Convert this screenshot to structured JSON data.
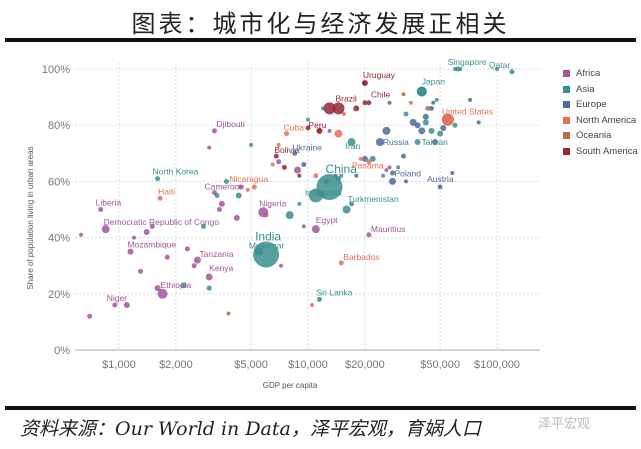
{
  "header": {
    "title": "图表：城市化与经济发展正相关"
  },
  "footer": {
    "source": "资料来源：Our World in Data，泽平宏观，育娲人口",
    "watermark": "泽平宏观"
  },
  "chart_data": {
    "type": "scatter",
    "title": "图表：城市化与经济发展正相关",
    "xlabel": "GDP per capita",
    "ylabel": "Share of population living in urban areas",
    "xscale": "log",
    "xlim": [
      600,
      140000
    ],
    "ylim": [
      0,
      100
    ],
    "x_ticks": [
      "$1,000",
      "$2,000",
      "$5,000",
      "$10,000",
      "$20,000",
      "$50,000",
      "$100,000"
    ],
    "y_ticks": [
      "0%",
      "20%",
      "40%",
      "60%",
      "80%",
      "100%"
    ],
    "grid": true,
    "legend_position": "right",
    "legend": [
      {
        "name": "Africa",
        "color": "#a2559c"
      },
      {
        "name": "Asia",
        "color": "#3a8f8c"
      },
      {
        "name": "Europe",
        "color": "#4c6a9c"
      },
      {
        "name": "North America",
        "color": "#e56e5a"
      },
      {
        "name": "Oceania",
        "color": "#b16f47"
      },
      {
        "name": "South America",
        "color": "#932834"
      }
    ],
    "labeled_points": [
      {
        "country": "Qatar",
        "region": "Asia",
        "gdp": 120000,
        "urban": 99
      },
      {
        "country": "Singapore",
        "region": "Asia",
        "gdp": 62000,
        "urban": 100
      },
      {
        "country": "Japan",
        "region": "Asia",
        "gdp": 40000,
        "urban": 92
      },
      {
        "country": "Uruguay",
        "region": "South America",
        "gdp": 20000,
        "urban": 95
      },
      {
        "country": "United States",
        "region": "North America",
        "gdp": 55000,
        "urban": 82
      },
      {
        "country": "Brazil",
        "region": "South America",
        "gdp": 14500,
        "urban": 86
      },
      {
        "country": "Chile",
        "region": "South America",
        "gdp": 21000,
        "urban": 88
      },
      {
        "country": "Taiwan",
        "region": "Asia",
        "gdp": 45000,
        "urban": 78
      },
      {
        "country": "Cuba",
        "region": "North America",
        "gdp": 7700,
        "urban": 77
      },
      {
        "country": "Peru",
        "region": "South America",
        "gdp": 11500,
        "urban": 78
      },
      {
        "country": "Iran",
        "region": "Asia",
        "gdp": 17000,
        "urban": 74
      },
      {
        "country": "Russia",
        "region": "Europe",
        "gdp": 24000,
        "urban": 74
      },
      {
        "country": "Djibouti",
        "region": "Africa",
        "gdp": 3200,
        "urban": 78
      },
      {
        "country": "Bolivia",
        "region": "South America",
        "gdp": 6800,
        "urban": 69
      },
      {
        "country": "Ukraine",
        "region": "Europe",
        "gdp": 8500,
        "urban": 70
      },
      {
        "country": "Panama",
        "region": "North America",
        "gdp": 21000,
        "urban": 67
      },
      {
        "country": "China",
        "region": "Asia",
        "gdp": 13000,
        "urban": 58
      },
      {
        "country": "Indonesia",
        "region": "Asia",
        "gdp": 11000,
        "urban": 55
      },
      {
        "country": "Poland",
        "region": "Europe",
        "gdp": 28000,
        "urban": 60
      },
      {
        "country": "Austria",
        "region": "Europe",
        "gdp": 50000,
        "urban": 58
      },
      {
        "country": "Turkmenistan",
        "region": "Asia",
        "gdp": 17000,
        "urban": 52
      },
      {
        "country": "North Korea",
        "region": "Asia",
        "gdp": 1600,
        "urban": 61
      },
      {
        "country": "Haiti",
        "region": "North America",
        "gdp": 1650,
        "urban": 54
      },
      {
        "country": "Cameroon",
        "region": "Africa",
        "gdp": 3200,
        "urban": 56
      },
      {
        "country": "Nicaragua",
        "region": "North America",
        "gdp": 5200,
        "urban": 58
      },
      {
        "country": "Nigeria",
        "region": "Africa",
        "gdp": 5800,
        "urban": 49
      },
      {
        "country": "Liberia",
        "region": "Africa",
        "gdp": 800,
        "urban": 50
      },
      {
        "country": "Democratic Republic of Congo",
        "region": "Africa",
        "gdp": 850,
        "urban": 43
      },
      {
        "country": "Egypt",
        "region": "Africa",
        "gdp": 11000,
        "urban": 43
      },
      {
        "country": "Mauritius",
        "region": "Africa",
        "gdp": 21000,
        "urban": 41
      },
      {
        "country": "India",
        "region": "Asia",
        "gdp": 6000,
        "urban": 34
      },
      {
        "country": "Myanmar",
        "region": "Asia",
        "gdp": 5500,
        "urban": 35
      },
      {
        "country": "Mozambique",
        "region": "Africa",
        "gdp": 1150,
        "urban": 35
      },
      {
        "country": "Tanzania",
        "region": "Africa",
        "gdp": 2600,
        "urban": 32
      },
      {
        "country": "Kenya",
        "region": "Africa",
        "gdp": 3000,
        "urban": 26
      },
      {
        "country": "Ethiopia",
        "region": "Africa",
        "gdp": 1700,
        "urban": 20
      },
      {
        "country": "Barbados",
        "region": "North America",
        "gdp": 15000,
        "urban": 31
      },
      {
        "country": "Sri Lanka",
        "region": "Asia",
        "gdp": 11500,
        "urban": 18
      },
      {
        "country": "Niger",
        "region": "Africa",
        "gdp": 950,
        "urban": 16
      }
    ]
  }
}
